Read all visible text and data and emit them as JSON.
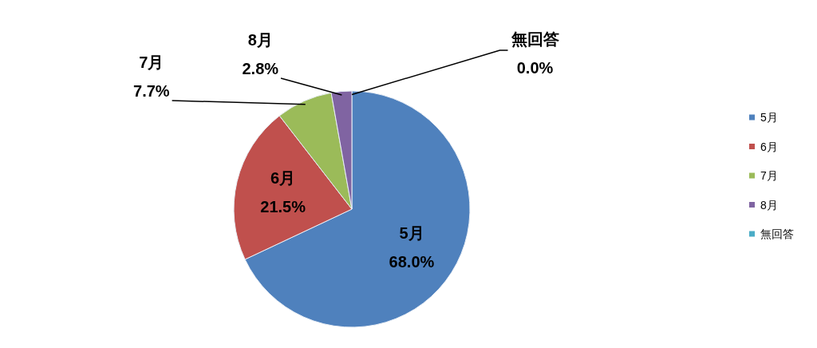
{
  "chart_data": {
    "type": "pie",
    "categories": [
      "5月",
      "6月",
      "7月",
      "8月",
      "無回答"
    ],
    "values": [
      68.0,
      21.5,
      7.7,
      2.8,
      0.0
    ],
    "colors": [
      "#4f81bd",
      "#c0504d",
      "#9bbb59",
      "#8064a2",
      "#4bacc6"
    ],
    "value_labels": [
      "68.0%",
      "21.5%",
      "7.7%",
      "2.8%",
      "0.0%"
    ],
    "legend": "right"
  }
}
